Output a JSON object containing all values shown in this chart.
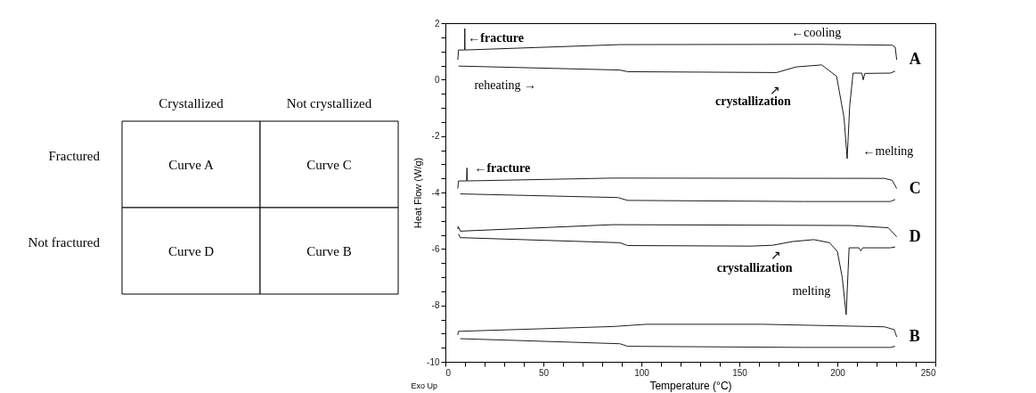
{
  "chart_data": [
    {
      "type": "other",
      "annotations": [
        "Crystallized",
        "Not crystallized",
        "Fractured",
        "Not fractured",
        "Curve A",
        "Curve C",
        "Curve D",
        "Curve B"
      ]
    },
    {
      "type": "line",
      "xlabel": "Temperature (°C)",
      "ylabel": "Heat Flow (W/g)",
      "grid": false,
      "legend": false,
      "marker": "none",
      "line_style": "solid",
      "xlim": [
        0,
        250
      ],
      "ylim": [
        -10,
        2
      ],
      "xticks": [
        0,
        {
          "value": 10,
          "label": null
        },
        {
          "value": 20,
          "label": null
        },
        {
          "value": 30,
          "label": null
        },
        {
          "value": 40,
          "label": null
        },
        50,
        {
          "value": 60,
          "label": null
        },
        {
          "value": 70,
          "label": null
        },
        {
          "value": 80,
          "label": null
        },
        {
          "value": 90,
          "label": null
        },
        100,
        {
          "value": 110,
          "label": null
        },
        {
          "value": 120,
          "label": null
        },
        {
          "value": 130,
          "label": null
        },
        {
          "value": 140,
          "label": null
        },
        150,
        {
          "value": 160,
          "label": null
        },
        {
          "value": 170,
          "label": null
        },
        {
          "value": 180,
          "label": null
        },
        {
          "value": 190,
          "label": null
        },
        200,
        {
          "value": 210,
          "label": null
        },
        {
          "value": 220,
          "label": null
        },
        {
          "value": 230,
          "label": null
        },
        {
          "value": 240,
          "label": null
        },
        250
      ],
      "yticks": [
        -10,
        {
          "value": -9.5,
          "label": null
        },
        {
          "value": -9,
          "label": null
        },
        {
          "value": -8.5,
          "label": null
        },
        -8,
        {
          "value": -7.5,
          "label": null
        },
        {
          "value": -7,
          "label": null
        },
        {
          "value": -6.5,
          "label": null
        },
        -6,
        {
          "value": -5.5,
          "label": null
        },
        {
          "value": -5,
          "label": null
        },
        {
          "value": -4.5,
          "label": null
        },
        -4,
        {
          "value": -3.5,
          "label": null
        },
        {
          "value": -3,
          "label": null
        },
        {
          "value": -2.5,
          "label": null
        },
        -2,
        {
          "value": -1.5,
          "label": null
        },
        {
          "value": -1,
          "label": null
        },
        {
          "value": -0.5,
          "label": null
        },
        0,
        {
          "value": 0.5,
          "label": null
        },
        {
          "value": 1,
          "label": null
        },
        {
          "value": 1.5,
          "label": null
        },
        2
      ],
      "series": [
        {
          "name": "A",
          "color": "#1a1a1a",
          "x": [
            6.3,
            6.7,
            9.8,
            9.9,
            10.0,
            89,
            190,
            228,
            229.5,
            230.3
          ],
          "values": [
            0.7,
            1.05,
            1.05,
            1.81,
            1.05,
            1.24,
            1.25,
            1.22,
            1.15,
            0.7
          ]
        },
        {
          "color": "#1a1a1a",
          "x": [
            6.7,
            89,
            93,
            169,
            179,
            192,
            199.6,
            203.4,
            205,
            206.3,
            208,
            212.5,
            213.2,
            214,
            227,
            229.5
          ],
          "values": [
            0.48,
            0.34,
            0.28,
            0.25,
            0.45,
            0.52,
            0.12,
            -1.34,
            -2.8,
            -0.94,
            0.23,
            0.23,
            -0.01,
            0.22,
            0.23,
            0.3
          ]
        },
        {
          "name": "C",
          "color": "#1d1d1d",
          "x": [
            6.3,
            6.7,
            10.8,
            11,
            11.2,
            85.5,
            224,
            228,
            230.3
          ],
          "values": [
            -3.86,
            -3.59,
            -3.59,
            -3.13,
            -3.59,
            -3.49,
            -3.5,
            -3.57,
            -3.86
          ]
        },
        {
          "color": "#1d1d1d",
          "x": [
            7.6,
            88,
            93,
            183,
            227,
            229.5
          ],
          "values": [
            -4.05,
            -4.18,
            -4.28,
            -4.32,
            -4.32,
            -4.25
          ]
        },
        {
          "name": "D",
          "color": "#171717",
          "x": [
            6.3,
            6.5,
            7.6,
            85.5,
            207,
            226,
            230.3
          ],
          "values": [
            -5.3,
            -5.2,
            -5.37,
            -5.14,
            -5.17,
            -5.25,
            -5.57
          ]
        },
        {
          "color": "#171717",
          "x": [
            6.7,
            7.6,
            89,
            93,
            156,
            167,
            177,
            188,
            196,
            200,
            202.5,
            204.5,
            206,
            211,
            212,
            213,
            227,
            229.5
          ],
          "values": [
            -5.47,
            -5.6,
            -5.78,
            -5.88,
            -5.9,
            -5.87,
            -5.74,
            -5.67,
            -5.78,
            -6.09,
            -7.01,
            -8.33,
            -5.96,
            -5.96,
            -6.07,
            -5.96,
            -5.96,
            -5.93
          ]
        },
        {
          "name": "B",
          "color": "#202020",
          "x": [
            6.3,
            6.7,
            85.5,
            102.7,
            161.6,
            224,
            229,
            230.3
          ],
          "values": [
            -9.05,
            -8.92,
            -8.75,
            -8.67,
            -8.67,
            -8.76,
            -8.86,
            -9.12
          ]
        },
        {
          "color": "#202020",
          "x": [
            7.6,
            89,
            93,
            182.5,
            227,
            229.5
          ],
          "values": [
            -9.18,
            -9.36,
            -9.45,
            -9.49,
            -9.49,
            -9.45
          ]
        }
      ],
      "annotations": [
        "←fracture",
        "←cooling",
        "reheating →",
        "↗",
        "crystallization",
        "←melting",
        "←fracture",
        "↗",
        "crystallization",
        "melting",
        "Exo Up"
      ]
    }
  ]
}
